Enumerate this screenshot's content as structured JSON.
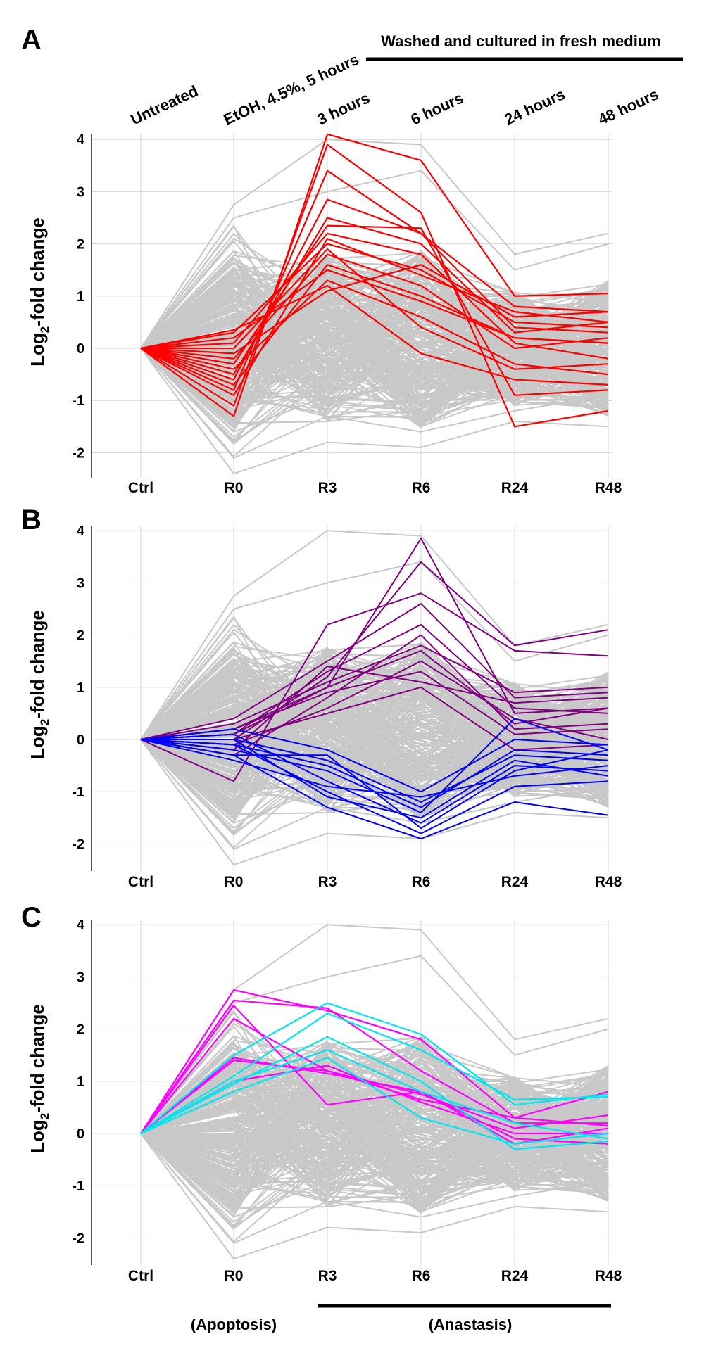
{
  "top_header": {
    "washed_label": "Washed and cultured in fresh medium",
    "condition_labels": [
      "Untreated",
      "EtOH, 4.5%, 5 hours",
      "3 hours",
      "6 hours",
      "24 hours",
      "48 hours"
    ]
  },
  "bottom_labels": {
    "apoptosis": "(Apoptosis)",
    "anastasis": "(Anastasis)"
  },
  "chart_data": [
    {
      "panel": "A",
      "type": "line",
      "ylabel_main": "Log",
      "ylabel_sub": "2",
      "ylabel_rest": "-fold change",
      "x": [
        "Ctrl",
        "R0",
        "R3",
        "R6",
        "R24",
        "R48"
      ],
      "yticks": [
        -2,
        -1,
        0,
        1,
        2,
        3,
        4
      ],
      "ylim": [
        -2.4,
        4.1
      ],
      "grid": true,
      "background_color": "#c8c8c8",
      "highlight_color": "#ff0000",
      "highlight_series": [
        {
          "values": [
            0,
            -1.3,
            4.1,
            3.6,
            1.0,
            1.05
          ]
        },
        {
          "values": [
            0,
            -1.1,
            3.9,
            2.6,
            -1.5,
            -1.2
          ]
        },
        {
          "values": [
            0,
            -0.8,
            3.4,
            2.2,
            0.8,
            0.7
          ]
        },
        {
          "values": [
            0,
            -0.6,
            2.85,
            2.2,
            0.4,
            0.3
          ]
        },
        {
          "values": [
            0,
            -0.5,
            2.5,
            2.0,
            0.3,
            0.5
          ]
        },
        {
          "values": [
            0,
            -0.3,
            2.35,
            2.3,
            -0.9,
            -0.8
          ]
        },
        {
          "values": [
            0,
            0.1,
            2.2,
            1.8,
            0.1,
            -0.2
          ]
        },
        {
          "values": [
            0,
            0.3,
            2.0,
            1.5,
            0.5,
            0.4
          ]
        },
        {
          "values": [
            0,
            -0.2,
            1.8,
            1.2,
            0.0,
            0.2
          ]
        },
        {
          "values": [
            0,
            0.2,
            1.5,
            0.9,
            0.2,
            0.1
          ]
        },
        {
          "values": [
            0,
            -0.4,
            1.3,
            0.6,
            -0.3,
            -0.5
          ]
        },
        {
          "values": [
            0,
            0.35,
            1.2,
            -0.1,
            -0.6,
            -0.7
          ]
        },
        {
          "values": [
            0,
            -0.1,
            1.1,
            1.6,
            0.6,
            0.7
          ]
        },
        {
          "values": [
            0,
            -0.7,
            1.6,
            1.0,
            0.2,
            0.1
          ]
        },
        {
          "values": [
            0,
            0.0,
            1.9,
            0.4,
            -0.4,
            -0.3
          ]
        },
        {
          "values": [
            0,
            -0.9,
            2.1,
            1.4,
            0.7,
            0.5
          ]
        }
      ]
    },
    {
      "panel": "B",
      "type": "line",
      "ylabel_main": "Log",
      "ylabel_sub": "2",
      "ylabel_rest": "-fold change",
      "x": [
        "Ctrl",
        "R0",
        "R3",
        "R6",
        "R24",
        "R48"
      ],
      "yticks": [
        -2,
        -1,
        0,
        1,
        2,
        3,
        4
      ],
      "ylim": [
        -2.4,
        4.1
      ],
      "grid": true,
      "background_color": "#c8c8c8",
      "highlight_colors": [
        "#800080",
        "#0000ff"
      ],
      "purple_series": [
        {
          "values": [
            0,
            0.2,
            1.0,
            3.85,
            0.5,
            0.6
          ]
        },
        {
          "values": [
            0,
            0.0,
            1.2,
            3.4,
            1.8,
            2.1
          ]
        },
        {
          "values": [
            0,
            -0.8,
            2.2,
            2.8,
            1.7,
            1.6
          ]
        },
        {
          "values": [
            0,
            0.4,
            1.5,
            2.6,
            0.8,
            0.9
          ]
        },
        {
          "values": [
            0,
            0.1,
            1.3,
            2.2,
            0.6,
            0.5
          ]
        },
        {
          "values": [
            0,
            -0.3,
            0.8,
            2.0,
            0.2,
            0.3
          ]
        },
        {
          "values": [
            0,
            0.3,
            1.1,
            1.8,
            0.9,
            1.0
          ]
        },
        {
          "values": [
            0,
            -0.1,
            0.6,
            1.5,
            0.4,
            0.0
          ]
        },
        {
          "values": [
            0,
            0.2,
            0.9,
            1.3,
            0.1,
            0.2
          ]
        },
        {
          "values": [
            0,
            -0.2,
            1.4,
            1.1,
            0.7,
            0.8
          ]
        },
        {
          "values": [
            0,
            0.0,
            0.5,
            1.0,
            -0.2,
            -0.1
          ]
        },
        {
          "values": [
            0,
            0.1,
            1.0,
            1.7,
            0.3,
            0.6
          ]
        }
      ],
      "blue_series": [
        {
          "values": [
            0,
            -0.3,
            -1.3,
            -1.9,
            -1.2,
            -1.45
          ]
        },
        {
          "values": [
            0,
            -0.1,
            -1.0,
            -1.8,
            -0.9,
            -0.8
          ]
        },
        {
          "values": [
            0,
            0.1,
            -0.8,
            -1.6,
            -0.5,
            -0.6
          ]
        },
        {
          "values": [
            0,
            -0.2,
            -0.6,
            -1.4,
            0.4,
            -0.2
          ]
        },
        {
          "values": [
            0,
            0.0,
            -0.4,
            -1.2,
            -0.3,
            -0.4
          ]
        },
        {
          "values": [
            0,
            -0.4,
            -0.9,
            -1.1,
            -0.7,
            -0.5
          ]
        },
        {
          "values": [
            0,
            0.2,
            -0.2,
            -1.0,
            0.0,
            -0.1
          ]
        },
        {
          "values": [
            0,
            -0.1,
            -0.5,
            -1.3,
            -0.2,
            -0.3
          ]
        },
        {
          "values": [
            0,
            0.0,
            -1.1,
            -1.5,
            -0.4,
            -0.7
          ]
        },
        {
          "values": [
            0,
            -0.3,
            -0.3,
            -1.7,
            -0.6,
            -0.2
          ]
        }
      ]
    },
    {
      "panel": "C",
      "type": "line",
      "ylabel_main": "Log",
      "ylabel_sub": "2",
      "ylabel_rest": "-fold change",
      "x": [
        "Ctrl",
        "R0",
        "R3",
        "R6",
        "R24",
        "R48"
      ],
      "yticks": [
        -2,
        -1,
        0,
        1,
        2,
        3,
        4
      ],
      "ylim": [
        -2.4,
        4.1
      ],
      "grid": true,
      "background_color": "#c8c8c8",
      "highlight_colors": [
        "#ff00ff",
        "#00e5ee"
      ],
      "magenta_series": [
        {
          "values": [
            0,
            2.75,
            2.35,
            1.8,
            0.3,
            0.8
          ]
        },
        {
          "values": [
            0,
            2.55,
            2.4,
            1.2,
            0.2,
            0.2
          ]
        },
        {
          "values": [
            0,
            2.45,
            0.55,
            0.8,
            -0.2,
            0.1
          ]
        },
        {
          "values": [
            0,
            2.2,
            1.2,
            0.75,
            0.1,
            0.35
          ]
        },
        {
          "values": [
            0,
            1.45,
            1.15,
            0.8,
            -0.1,
            -0.2
          ]
        },
        {
          "values": [
            0,
            1.4,
            1.2,
            0.65,
            0.3,
            0.15
          ]
        },
        {
          "values": [
            0,
            1.0,
            1.3,
            0.6,
            0.0,
            0.0
          ]
        }
      ],
      "cyan_series": [
        {
          "values": [
            0,
            1.5,
            2.5,
            1.9,
            0.55,
            0.75
          ]
        },
        {
          "values": [
            0,
            1.1,
            2.3,
            1.6,
            0.65,
            0.7
          ]
        },
        {
          "values": [
            0,
            0.95,
            1.85,
            1.0,
            -0.3,
            -0.15
          ]
        },
        {
          "values": [
            0,
            0.8,
            1.45,
            0.3,
            -0.2,
            0.0
          ]
        },
        {
          "values": [
            0,
            1.0,
            1.6,
            0.8,
            0.2,
            -0.1
          ]
        }
      ]
    }
  ]
}
